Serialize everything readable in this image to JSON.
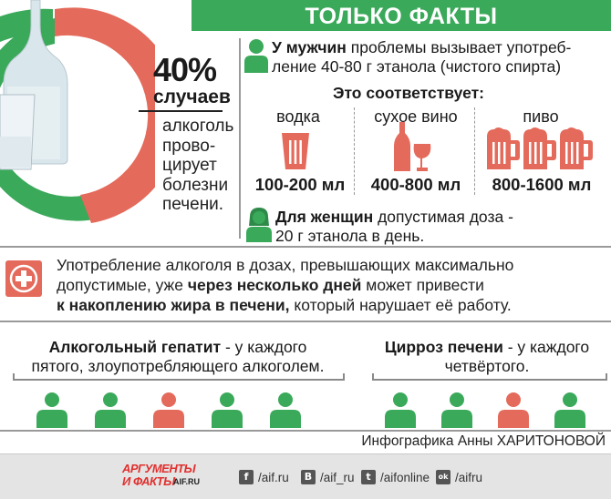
{
  "header": {
    "title": "ТОЛЬКО ФАКТЫ"
  },
  "stat_main": {
    "percent": "40%",
    "sub": "случаев",
    "desc": [
      "алкоголь",
      "прово-",
      "цирует",
      "болезни",
      "печени."
    ]
  },
  "men": {
    "bold": "У мужчин",
    "line1_rest": " проблемы вызывает употреб-",
    "line2": "ление 40-80 г этанола (чистого спирта)"
  },
  "correspond": {
    "title": "Это соответствует:",
    "drinks": [
      {
        "name": "водка",
        "amount": "100-200 мл",
        "icon": "vodka-glass-icon"
      },
      {
        "name": "сухое вино",
        "amount": "400-800 мл",
        "icon": "wine-icon"
      },
      {
        "name": "пиво",
        "amount": "800-1600 мл",
        "icon": "beer-mugs-icon"
      }
    ]
  },
  "women": {
    "bold": "Для женщин",
    "line1_rest": " допустимая доза -",
    "line2": "20 г этанола в день."
  },
  "warning": {
    "line1": "Употребление алкоголя в дозах, превышающих максимально",
    "line2_pre": "допустимые, уже ",
    "line2_bold": "через несколько дней",
    "line2_post": " может привести",
    "line3_bold": "к накоплению жира в печени,",
    "line3_post": " который нарушает её работу."
  },
  "hepatitis": {
    "bold": "Алкогольный гепатит",
    "rest1": " - у каждого",
    "line2": "пятого, злоупотребляющего алкоголем."
  },
  "cirrhosis": {
    "bold": "Цирроз печени",
    "rest1": " - у каждого",
    "line2": "четвёртого."
  },
  "credit": "Инфографика Анны ХАРИТОНОВОЙ",
  "footer": {
    "logo_line1": "АРГУМЕНТЫ",
    "logo_line2": "И ФАКТЫ",
    "logo_domain": "AIF.RU",
    "social": [
      {
        "icon": "f",
        "name": "facebook-icon",
        "text": "/aif.ru"
      },
      {
        "icon": "В",
        "name": "vk-icon",
        "text": "/aif_ru"
      },
      {
        "icon": "t",
        "name": "twitter-icon",
        "text": "/aifonline"
      },
      {
        "icon": "ok",
        "name": "odnoklassniki-icon",
        "text": "/aifru"
      }
    ]
  },
  "colors": {
    "green": "#3aa95a",
    "red": "#e46a5b",
    "gray": "#9a9a9a"
  }
}
